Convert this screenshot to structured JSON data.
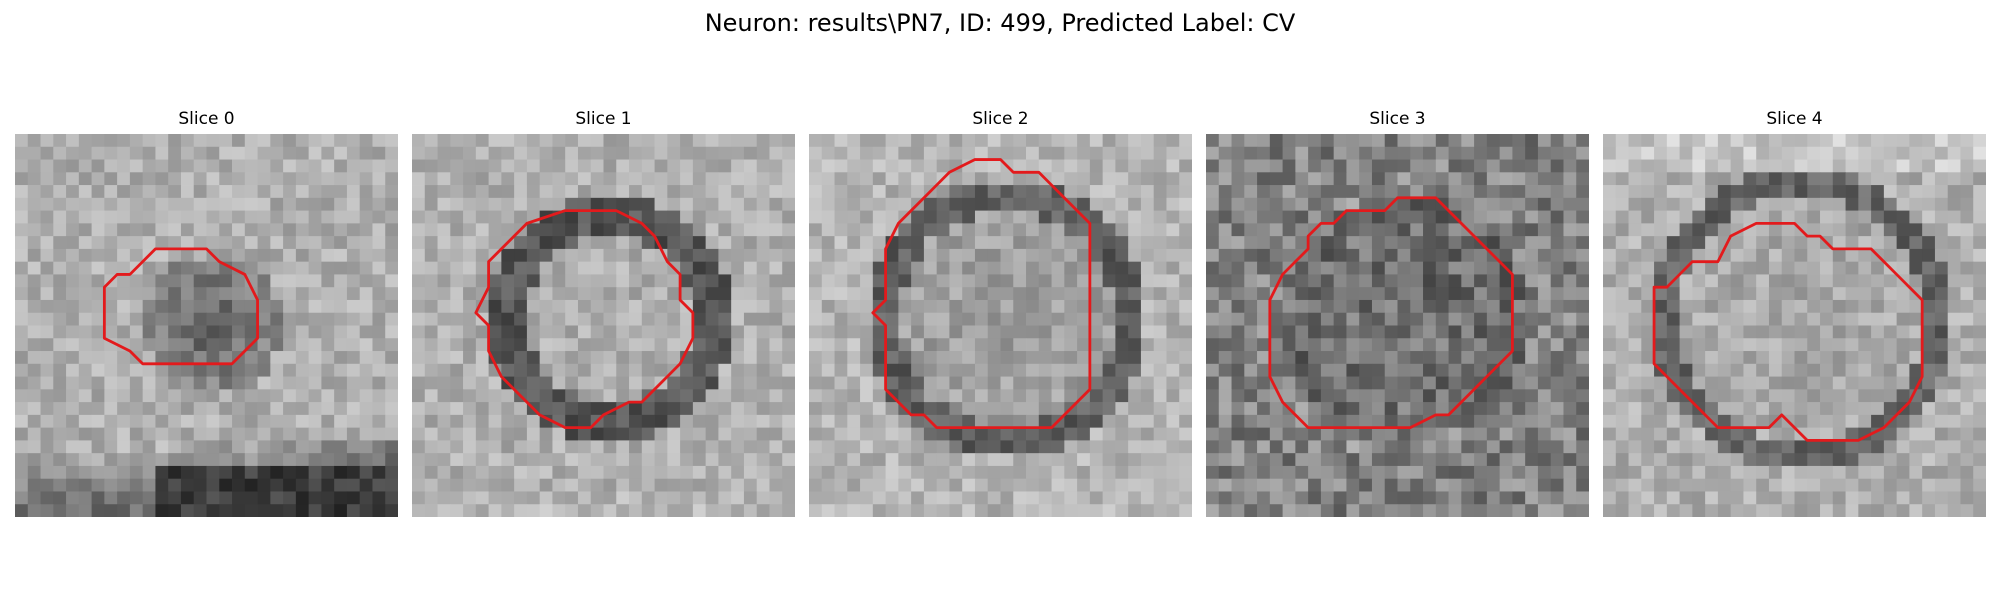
{
  "figure": {
    "title": "Neuron: results\\PN7, ID: 499, Predicted Label: CV",
    "contour_color": "#e31a1c",
    "colormap": "gray",
    "slices": [
      {
        "title": "Slice 0",
        "contour": [
          [
            9,
            11
          ],
          [
            11,
            9
          ],
          [
            13,
            9
          ],
          [
            15,
            9
          ],
          [
            16,
            10
          ],
          [
            18,
            11
          ],
          [
            19,
            13
          ],
          [
            19,
            15
          ],
          [
            19,
            16
          ],
          [
            17,
            18
          ],
          [
            15,
            18
          ],
          [
            13,
            18
          ],
          [
            11,
            18
          ],
          [
            10,
            18
          ],
          [
            9,
            17
          ],
          [
            7,
            16
          ],
          [
            7,
            14
          ],
          [
            7,
            12
          ],
          [
            8,
            11
          ]
        ]
      },
      {
        "title": "Slice 1",
        "contour": [
          [
            9,
            7
          ],
          [
            12,
            6
          ],
          [
            16,
            6
          ],
          [
            18,
            7
          ],
          [
            19,
            8
          ],
          [
            20,
            10
          ],
          [
            21,
            11
          ],
          [
            21,
            13
          ],
          [
            22,
            14
          ],
          [
            22,
            16
          ],
          [
            21,
            18
          ],
          [
            20,
            19
          ],
          [
            18,
            21
          ],
          [
            17,
            21
          ],
          [
            15,
            22
          ],
          [
            14,
            23
          ],
          [
            12,
            23
          ],
          [
            10,
            22
          ],
          [
            9,
            21
          ],
          [
            8,
            20
          ],
          [
            7,
            19
          ],
          [
            6,
            17
          ],
          [
            6,
            15
          ],
          [
            5,
            14
          ],
          [
            6,
            12
          ],
          [
            6,
            10
          ],
          [
            7,
            9
          ],
          [
            8,
            8
          ]
        ]
      },
      {
        "title": "Slice 2",
        "contour": [
          [
            9,
            5
          ],
          [
            10,
            4
          ],
          [
            11,
            3
          ],
          [
            13,
            2
          ],
          [
            15,
            2
          ],
          [
            16,
            3
          ],
          [
            18,
            3
          ],
          [
            19,
            4
          ],
          [
            20,
            5
          ],
          [
            21,
            6
          ],
          [
            22,
            7
          ],
          [
            22,
            9
          ],
          [
            22,
            11
          ],
          [
            22,
            13
          ],
          [
            22,
            15
          ],
          [
            22,
            17
          ],
          [
            22,
            20
          ],
          [
            21,
            21
          ],
          [
            20,
            22
          ],
          [
            19,
            23
          ],
          [
            17,
            23
          ],
          [
            14,
            23
          ],
          [
            12,
            23
          ],
          [
            10,
            23
          ],
          [
            9,
            22
          ],
          [
            8,
            22
          ],
          [
            7,
            21
          ],
          [
            6,
            20
          ],
          [
            6,
            17
          ],
          [
            6,
            15
          ],
          [
            5,
            14
          ],
          [
            6,
            13
          ],
          [
            6,
            11
          ],
          [
            6,
            9
          ],
          [
            7,
            7
          ],
          [
            8,
            6
          ]
        ]
      },
      {
        "title": "Slice 3",
        "contour": [
          [
            8,
            8
          ],
          [
            9,
            7
          ],
          [
            10,
            7
          ],
          [
            11,
            6
          ],
          [
            13,
            6
          ],
          [
            14,
            6
          ],
          [
            15,
            5
          ],
          [
            18,
            5
          ],
          [
            19,
            6
          ],
          [
            20,
            7
          ],
          [
            21,
            8
          ],
          [
            22,
            9
          ],
          [
            23,
            10
          ],
          [
            24,
            11
          ],
          [
            24,
            14
          ],
          [
            24,
            17
          ],
          [
            23,
            18
          ],
          [
            22,
            19
          ],
          [
            21,
            20
          ],
          [
            20,
            21
          ],
          [
            19,
            22
          ],
          [
            18,
            22
          ],
          [
            16,
            23
          ],
          [
            13,
            23
          ],
          [
            10,
            23
          ],
          [
            8,
            23
          ],
          [
            7,
            22
          ],
          [
            6,
            21
          ],
          [
            5,
            19
          ],
          [
            5,
            16
          ],
          [
            5,
            13
          ],
          [
            6,
            11
          ],
          [
            7,
            10
          ],
          [
            8,
            9
          ]
        ]
      },
      {
        "title": "Slice 4",
        "contour": [
          [
            9,
            10
          ],
          [
            10,
            8
          ],
          [
            12,
            7
          ],
          [
            14,
            7
          ],
          [
            15,
            7
          ],
          [
            16,
            8
          ],
          [
            17,
            8
          ],
          [
            18,
            9
          ],
          [
            20,
            9
          ],
          [
            21,
            9
          ],
          [
            22,
            10
          ],
          [
            23,
            11
          ],
          [
            24,
            12
          ],
          [
            25,
            13
          ],
          [
            25,
            15
          ],
          [
            25,
            17
          ],
          [
            25,
            19
          ],
          [
            24,
            21
          ],
          [
            23,
            22
          ],
          [
            22,
            23
          ],
          [
            20,
            24
          ],
          [
            18,
            24
          ],
          [
            16,
            24
          ],
          [
            15,
            23
          ],
          [
            14,
            22
          ],
          [
            13,
            23
          ],
          [
            11,
            23
          ],
          [
            9,
            23
          ],
          [
            8,
            22
          ],
          [
            7,
            21
          ],
          [
            6,
            20
          ],
          [
            5,
            19
          ],
          [
            4,
            18
          ],
          [
            4,
            15
          ],
          [
            4,
            12
          ],
          [
            5,
            12
          ],
          [
            6,
            11
          ],
          [
            7,
            10
          ],
          [
            8,
            10
          ]
        ]
      }
    ]
  }
}
